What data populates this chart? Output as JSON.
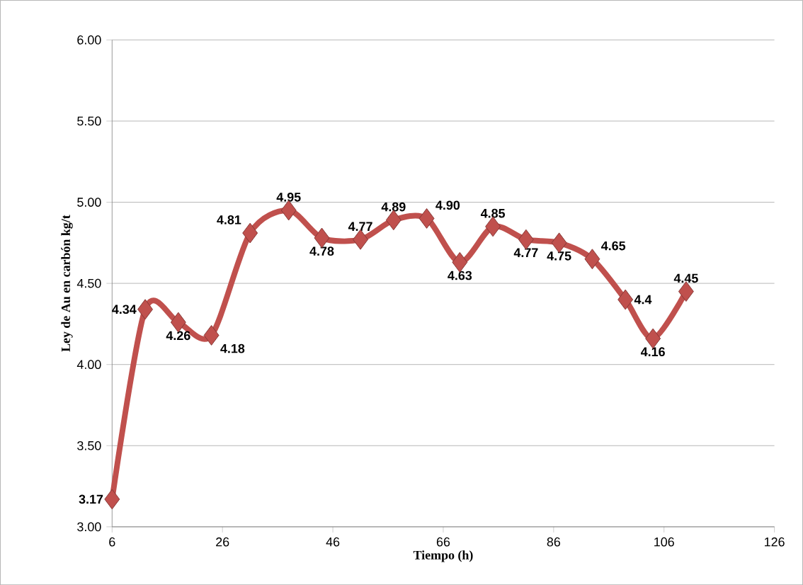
{
  "chart_data": {
    "type": "line",
    "xlabel": "Tiempo (h)",
    "ylabel": "Ley  de Au en carbón kg/t",
    "x": [
      6,
      12,
      18,
      24,
      31,
      38,
      44,
      51,
      57,
      63,
      69,
      75,
      81,
      87,
      93,
      99,
      104,
      110
    ],
    "values": [
      3.17,
      4.34,
      4.26,
      4.18,
      4.81,
      4.95,
      4.78,
      4.77,
      4.89,
      4.9,
      4.63,
      4.85,
      4.77,
      4.75,
      4.65,
      4.4,
      4.16,
      4.45
    ],
    "value_labels": [
      "3.17",
      "4.34",
      "4.26",
      "4.18",
      "4.81",
      "4.95",
      "4.78",
      "4.77",
      "4.89",
      "4.90",
      "4.63",
      "4.85",
      "4.77",
      "4.75",
      "4.65",
      "4.4",
      "4.16",
      "4.45"
    ],
    "color": "#c0504d",
    "marker": "diamond",
    "grid": "y",
    "xlim": [
      6,
      126
    ],
    "xticks": [
      6,
      26,
      46,
      66,
      86,
      106,
      126
    ],
    "ylim": [
      3,
      6
    ],
    "yticks": [
      {
        "value": 3,
        "label": "3.00"
      },
      {
        "value": 3.5,
        "label": "3.50"
      },
      {
        "value": 4,
        "label": "4.00"
      },
      {
        "value": 4.5,
        "label": "4.50"
      },
      {
        "value": 5,
        "label": "5.00"
      },
      {
        "value": 5.5,
        "label": "5.50"
      },
      {
        "value": 6,
        "label": "6.00"
      }
    ]
  }
}
